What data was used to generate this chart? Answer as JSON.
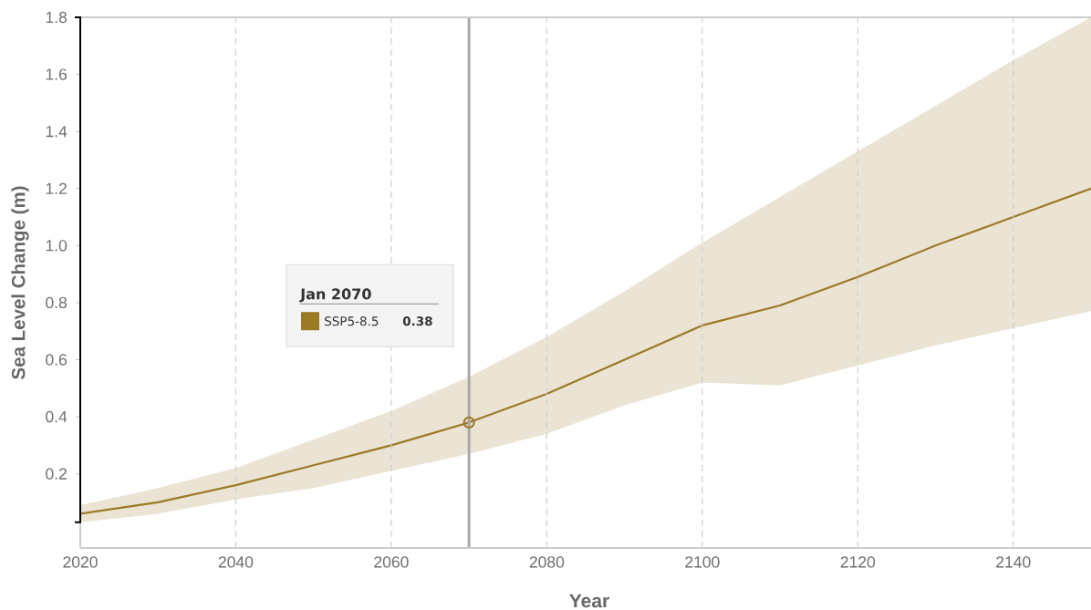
{
  "chart_data": {
    "type": "line",
    "xlabel": "Year",
    "ylabel": "Sea Level Change (m)",
    "x": [
      2020,
      2030,
      2040,
      2050,
      2060,
      2070,
      2080,
      2090,
      2100,
      2110,
      2120,
      2130,
      2140,
      2150
    ],
    "series": [
      {
        "name": "SSP5-8.5",
        "color": "#9b7a26",
        "values": [
          0.06,
          0.1,
          0.16,
          0.23,
          0.3,
          0.38,
          0.48,
          0.6,
          0.72,
          0.79,
          0.89,
          1.0,
          1.1,
          1.2
        ],
        "upper": [
          0.09,
          0.15,
          0.22,
          0.32,
          0.42,
          0.54,
          0.68,
          0.84,
          1.01,
          1.17,
          1.33,
          1.49,
          1.65,
          1.8
        ],
        "lower": [
          0.03,
          0.06,
          0.11,
          0.15,
          0.21,
          0.27,
          0.34,
          0.44,
          0.52,
          0.51,
          0.58,
          0.65,
          0.71,
          0.77
        ]
      },
      {
        "type": "scatter",
        "color": "#9b7a26",
        "marker": "circle",
        "x": [
          2070
        ],
        "values": [
          0.38
        ]
      }
    ],
    "xlim": [
      2020,
      2150
    ],
    "ylim": [
      -0.06,
      1.8
    ],
    "xticks": [
      2020,
      2040,
      2060,
      2080,
      2100,
      2120,
      2140
    ],
    "yticks": [
      {
        "value": 0.03,
        "label": null
      },
      0.2,
      0.4,
      0.6,
      0.8,
      {
        "value": 1,
        "label": "1.0"
      },
      1.2,
      1.4,
      1.6,
      1.8
    ],
    "grid": "x",
    "legend": "left",
    "legend_title": "Jan 2070",
    "ref_lines": [
      {
        "axis": "x",
        "value": 2070,
        "color": "#a8a8a8"
      }
    ],
    "annotations": [
      "0.38"
    ]
  }
}
